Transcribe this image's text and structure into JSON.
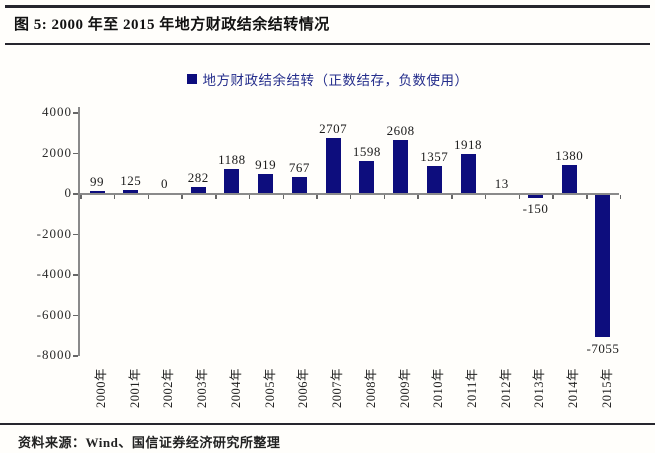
{
  "figure": {
    "title": "图 5: 2000 年至 2015 年地方财政结余结转情况",
    "source": "资料来源：Wind、国信证券经济研究所整理"
  },
  "chart_data": {
    "type": "bar",
    "title": "",
    "legend": [
      "地方财政结余结转（正数结存，负数使用）"
    ],
    "legend_position": "top-center",
    "categories": [
      "2000年",
      "2001年",
      "2002年",
      "2003年",
      "2004年",
      "2005年",
      "2006年",
      "2007年",
      "2008年",
      "2009年",
      "2010年",
      "2011年",
      "2012年",
      "2013年",
      "2014年",
      "2015年"
    ],
    "values": [
      99,
      125,
      0,
      282,
      1188,
      919,
      767,
      2707,
      1598,
      2608,
      1357,
      1918,
      13,
      -150,
      1380,
      -7055
    ],
    "data_labels": [
      "99",
      "125",
      "0",
      "282",
      "1188",
      "919",
      "767",
      "2707",
      "1598",
      "2608",
      "1357",
      "1918",
      "13",
      "-150",
      "1380",
      "-7055"
    ],
    "xlabel": "",
    "ylabel": "",
    "ylim": [
      -8000,
      4000
    ],
    "yticks": [
      4000,
      2000,
      0,
      -2000,
      -4000,
      -6000,
      -8000
    ],
    "grid": false,
    "bar_color": "#0d0d7d",
    "legend_text_color": "#252e8c",
    "axis_color": "#8a8a8a"
  }
}
